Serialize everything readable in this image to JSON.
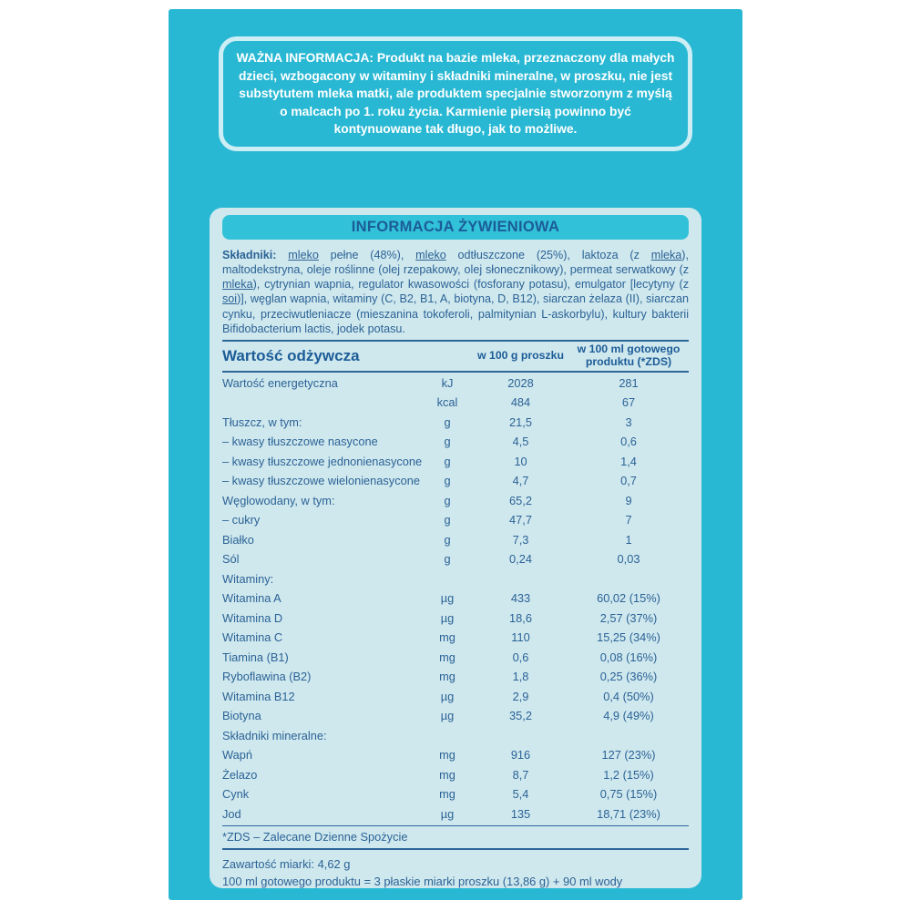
{
  "colors": {
    "teal": "#29b8d3",
    "band": "#31c1d9",
    "panel": "#cfe8ee",
    "text": "#2b6295",
    "heading": "#1c5c97",
    "line": "#2f6699",
    "warning_border": "#cdeef5",
    "white": "#ffffff"
  },
  "warning": {
    "text": "WAŻNA INFORMACJA: Produkt na bazie mleka, przeznaczony dla małych dzieci, wzbogacony w witaminy i składniki mineralne, w proszku, nie jest substytutem mleka matki, ale produktem specjalnie stworzonym z myślą o malcach po 1. roku życia. Karmienie piersią powinno być kontynuowane tak długo, jak to możliwe."
  },
  "panel": {
    "title": "INFORMACJA ŻYWIENIOWA",
    "ingredients": {
      "label": "Składniki: ",
      "segments": [
        {
          "t": "mleko",
          "u": true
        },
        {
          "t": " pełne (48%), "
        },
        {
          "t": "mleko",
          "u": true
        },
        {
          "t": " odtłuszczone (25%), laktoza (z "
        },
        {
          "t": "mleka",
          "u": true
        },
        {
          "t": "), maltodekstryna, oleje roślinne (olej rzepakowy, olej słonecznikowy), permeat serwatkowy (z "
        },
        {
          "t": "mleka",
          "u": true
        },
        {
          "t": "), cytrynian wapnia, regulator kwasowości (fosforany potasu), emulgator [lecytyny (z "
        },
        {
          "t": "soi",
          "u": true
        },
        {
          "t": ")], węglan wapnia, witaminy (C, B2, B1, A, biotyna, D, B12), siarczan żelaza (II), siarczan cynku, przeciwutleniacze (mieszanina tokoferoli, palmitynian L-askorbylu), kultury bakterii Bifidobacterium lactis, jodek potasu."
        }
      ]
    },
    "table": {
      "header": {
        "col1": "Wartość odżywcza",
        "col2": "",
        "col3": "w 100 g proszku",
        "col4": "w 100 ml gotowego produktu (*ZDS)"
      },
      "rows": [
        {
          "label": "Wartość energetyczna",
          "unit": "kJ",
          "per100g": "2028",
          "per100ml": "281"
        },
        {
          "label": "",
          "unit": "kcal",
          "per100g": "484",
          "per100ml": "67"
        },
        {
          "label": "Tłuszcz, w tym:",
          "unit": "g",
          "per100g": "21,5",
          "per100ml": "3"
        },
        {
          "label": "–  kwasy tłuszczowe nasycone",
          "unit": "g",
          "per100g": "4,5",
          "per100ml": "0,6"
        },
        {
          "label": "–  kwasy tłuszczowe jednonienasycone",
          "unit": "g",
          "per100g": "10",
          "per100ml": "1,4"
        },
        {
          "label": "–  kwasy tłuszczowe wielonienasycone",
          "unit": "g",
          "per100g": "4,7",
          "per100ml": "0,7"
        },
        {
          "label": "Węglowodany, w tym:",
          "unit": "g",
          "per100g": "65,2",
          "per100ml": "9"
        },
        {
          "label": "–  cukry",
          "unit": "g",
          "per100g": "47,7",
          "per100ml": "7"
        },
        {
          "label": "Białko",
          "unit": "g",
          "per100g": "7,3",
          "per100ml": "1"
        },
        {
          "label": "Sól",
          "unit": "g",
          "per100g": "0,24",
          "per100ml": "0,03"
        },
        {
          "label": "Witaminy:",
          "unit": "",
          "per100g": "",
          "per100ml": ""
        },
        {
          "label": "Witamina A",
          "unit": "µg",
          "per100g": "433",
          "per100ml": "60,02 (15%)"
        },
        {
          "label": "Witamina D",
          "unit": "µg",
          "per100g": "18,6",
          "per100ml": "2,57 (37%)"
        },
        {
          "label": "Witamina C",
          "unit": "mg",
          "per100g": "110",
          "per100ml": "15,25 (34%)"
        },
        {
          "label": "Tiamina (B1)",
          "unit": "mg",
          "per100g": "0,6",
          "per100ml": "0,08 (16%)"
        },
        {
          "label": "Ryboflawina (B2)",
          "unit": "mg",
          "per100g": "1,8",
          "per100ml": "0,25 (36%)"
        },
        {
          "label": "Witamina B12",
          "unit": "µg",
          "per100g": "2,9",
          "per100ml": "0,4 (50%)"
        },
        {
          "label": "Biotyna",
          "unit": "µg",
          "per100g": "35,2",
          "per100ml": "4,9 (49%)"
        },
        {
          "label": "Składniki mineralne:",
          "unit": "",
          "per100g": "",
          "per100ml": ""
        },
        {
          "label": "Wapń",
          "unit": "mg",
          "per100g": "916",
          "per100ml": "127 (23%)"
        },
        {
          "label": "Żelazo",
          "unit": "mg",
          "per100g": "8,7",
          "per100ml": "1,2 (15%)"
        },
        {
          "label": "Cynk",
          "unit": "mg",
          "per100g": "5,4",
          "per100ml": "0,75 (15%)"
        },
        {
          "label": "Jod",
          "unit": "µg",
          "per100g": "135",
          "per100ml": "18,71 (23%)"
        }
      ]
    },
    "footnote": "*ZDS – Zalecane Dzienne Spożycie",
    "footer": {
      "line1": "Zawartość miarki: 4,62 g",
      "line2": "100 ml gotowego produktu = 3 płaskie miarki proszku (13,86 g) + 90 ml wody"
    }
  }
}
